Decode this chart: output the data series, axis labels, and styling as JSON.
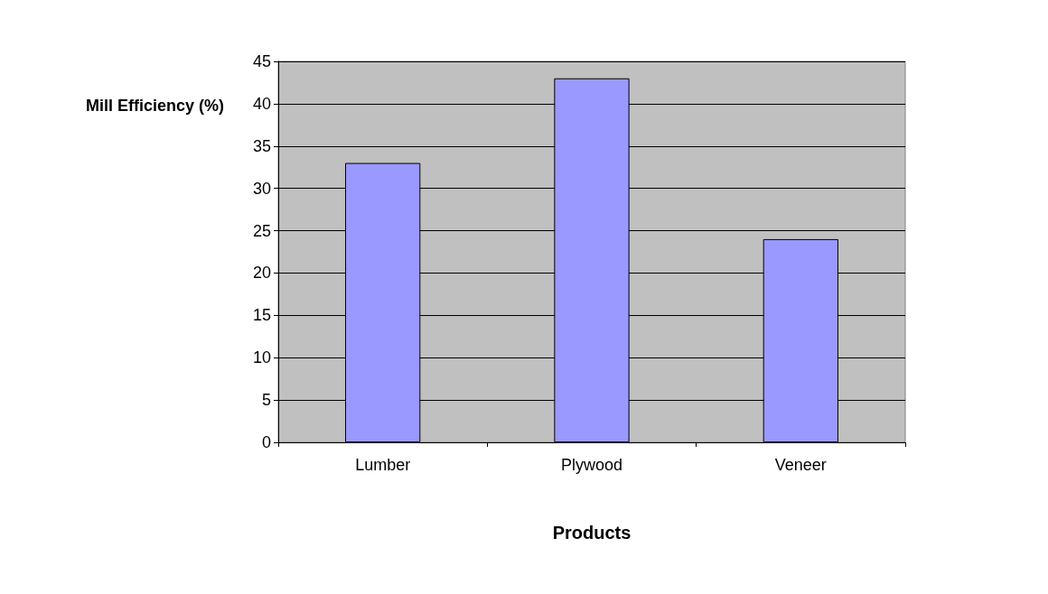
{
  "chart_data": {
    "type": "bar",
    "xlabel": "Products",
    "ylabel": "Mill Efficiency (%)",
    "categories": [
      "Lumber",
      "Plywood",
      "Veneer"
    ],
    "values": [
      33,
      43,
      24
    ],
    "color": "#9999ff",
    "ylim": [
      0,
      45
    ],
    "yticks": [
      0,
      5,
      10,
      15,
      20,
      25,
      30,
      35,
      40,
      45
    ],
    "grid": "y"
  }
}
